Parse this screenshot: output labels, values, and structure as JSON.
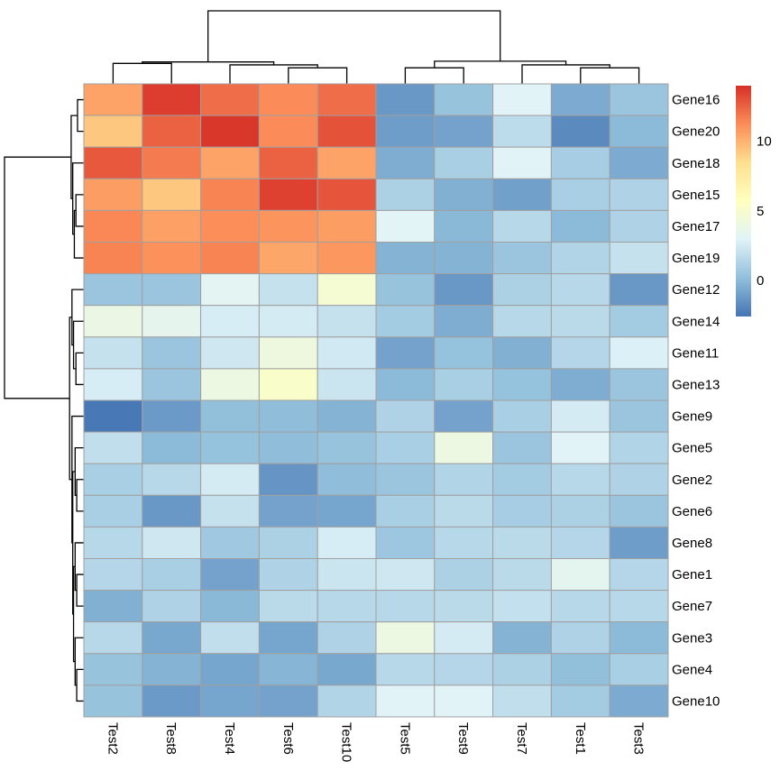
{
  "chart_data": {
    "type": "heatmap",
    "title": "",
    "clustered": true,
    "columns": [
      "Test2",
      "Test8",
      "Test4",
      "Test6",
      "Test10",
      "Test5",
      "Test9",
      "Test7",
      "Test1",
      "Test3"
    ],
    "rows": [
      "Gene16",
      "Gene20",
      "Gene18",
      "Gene15",
      "Gene17",
      "Gene19",
      "Gene12",
      "Gene14",
      "Gene11",
      "Gene13",
      "Gene9",
      "Gene5",
      "Gene2",
      "Gene6",
      "Gene8",
      "Gene1",
      "Gene7",
      "Gene3",
      "Gene4",
      "Gene10"
    ],
    "values": [
      [
        10.5,
        13.6,
        12.2,
        11.3,
        12.2,
        -1.3,
        0.4,
        3.0,
        -0.6,
        0.5
      ],
      [
        9.3,
        12.5,
        13.8,
        11.3,
        13.0,
        -1.1,
        -0.9,
        1.7,
        -1.8,
        0.0
      ],
      [
        12.8,
        11.8,
        10.5,
        12.5,
        10.5,
        -0.5,
        1.0,
        3.0,
        0.9,
        -0.6
      ],
      [
        10.7,
        9.3,
        11.5,
        13.5,
        12.9,
        1.1,
        -0.4,
        -1.0,
        1.0,
        1.2
      ],
      [
        11.4,
        10.6,
        11.2,
        11.0,
        10.7,
        3.1,
        -0.1,
        1.5,
        0.0,
        1.2
      ],
      [
        11.5,
        11.1,
        11.5,
        10.4,
        10.9,
        -0.3,
        -0.3,
        0.5,
        1.3,
        2.0
      ],
      [
        0.5,
        0.5,
        3.2,
        2.0,
        4.8,
        0.4,
        -1.3,
        1.1,
        1.5,
        -1.3
      ],
      [
        3.9,
        3.4,
        2.6,
        2.5,
        2.0,
        0.8,
        -0.5,
        1.5,
        1.6,
        0.8
      ],
      [
        2.0,
        0.5,
        2.3,
        4.2,
        2.4,
        -0.9,
        0.3,
        -0.4,
        1.4,
        2.8
      ],
      [
        2.6,
        0.5,
        4.0,
        5.2,
        2.2,
        0.0,
        1.0,
        0.3,
        -0.5,
        0.5
      ],
      [
        -2.5,
        -1.2,
        0.2,
        0.1,
        -0.3,
        1.2,
        -0.9,
        1.0,
        2.5,
        0.5
      ],
      [
        1.8,
        0.0,
        0.3,
        0.1,
        0.4,
        1.0,
        4.0,
        0.5,
        3.0,
        1.3
      ],
      [
        1.0,
        1.5,
        2.5,
        -1.4,
        0.1,
        0.5,
        1.3,
        0.8,
        1.5,
        1.2
      ],
      [
        1.0,
        -1.3,
        2.0,
        -0.9,
        -0.8,
        1.0,
        1.6,
        0.9,
        1.1,
        0.5
      ],
      [
        1.5,
        2.3,
        0.7,
        1.1,
        2.6,
        0.6,
        1.5,
        1.6,
        1.4,
        -1.1
      ],
      [
        1.4,
        1.0,
        -0.9,
        1.2,
        2.2,
        2.3,
        1.1,
        1.6,
        3.3,
        1.4
      ],
      [
        -0.4,
        1.2,
        -0.1,
        1.6,
        1.5,
        1.5,
        1.6,
        1.9,
        1.5,
        1.5
      ],
      [
        1.5,
        -0.7,
        1.8,
        -0.8,
        1.2,
        4.0,
        2.5,
        -0.3,
        1.2,
        0.0
      ],
      [
        0.4,
        -0.3,
        -0.8,
        -0.2,
        -0.7,
        1.5,
        1.4,
        1.1,
        0.2,
        1.0
      ],
      [
        0.4,
        -1.2,
        -0.8,
        -0.9,
        1.3,
        3.0,
        3.0,
        1.8,
        0.8,
        -0.6
      ]
    ],
    "color_scale": {
      "palette": [
        "#4575B4",
        "#91BFDB",
        "#E0F3F8",
        "#FFFFBF",
        "#FEE090",
        "#FC8D59",
        "#D73027"
      ],
      "min": -2.6,
      "max": 14.0
    },
    "legend": {
      "position": "top-right",
      "ticks": [
        0,
        5,
        10
      ]
    },
    "cell_border_color": "#A0A0A0",
    "col_dendrogram": {
      "merges": [
        {
          "left": "Test2",
          "right": "Test8",
          "height": 0.28
        },
        {
          "left": "Test6",
          "right": "Test10",
          "height": 0.22
        },
        {
          "left": "Test4",
          "right": "Test6+Test10",
          "height": 0.26
        },
        {
          "left": "Test2+Test8",
          "right": "Test4+Test6+Test10",
          "height": 0.3
        },
        {
          "left": "Test5",
          "right": "Test9",
          "height": 0.22
        },
        {
          "left": "Test1",
          "right": "Test3",
          "height": 0.22
        },
        {
          "left": "Test7",
          "right": "Test1+Test3",
          "height": 0.26
        },
        {
          "left": "Test5+Test9",
          "right": "Test7+Test1+Test3",
          "height": 0.31
        },
        {
          "left": "group1",
          "right": "group2",
          "height": 1.0
        }
      ]
    },
    "row_dendrogram": {
      "merges": [
        {
          "left": "Gene16",
          "right": "Gene20",
          "height": 0.08
        },
        {
          "left": "Gene15",
          "right": "Gene17",
          "height": 0.1
        },
        {
          "left": "Gene15+Gene17",
          "right": "Gene19",
          "height": 0.12
        },
        {
          "left": "Gene18",
          "right": "Gene15+Gene17+Gene19",
          "height": 0.14
        },
        {
          "left": "Gene16+Gene20",
          "right": "rest_red",
          "height": 0.16
        },
        {
          "left": "Gene11",
          "right": "Gene13",
          "height": 0.1
        },
        {
          "left": "Gene14",
          "right": "Gene11+Gene13",
          "height": 0.13
        },
        {
          "left": "Gene12",
          "right": "Gene14+Gene11+Gene13",
          "height": 0.15
        },
        {
          "left": "Gene2",
          "right": "Gene6",
          "height": 0.09
        },
        {
          "left": "Gene5",
          "right": "Gene2+Gene6",
          "height": 0.11
        },
        {
          "left": "Gene1",
          "right": "Gene7",
          "height": 0.09
        },
        {
          "left": "Gene8",
          "right": "Gene1+Gene7",
          "height": 0.11
        },
        {
          "left": "Gene4",
          "right": "Gene10",
          "height": 0.09
        },
        {
          "left": "Gene3",
          "right": "Gene4+Gene10",
          "height": 0.11
        },
        {
          "left": "Gene8+Gene1+Gene7",
          "right": "Gene3+Gene4+Gene10",
          "height": 0.13
        },
        {
          "left": "Gene5+Gene2+Gene6",
          "right": "Gene8..Gene10",
          "height": 0.14
        },
        {
          "left": "Gene9",
          "right": "Gene5..Gene10",
          "height": 0.15
        },
        {
          "left": "Gene12..Gene13",
          "right": "Gene9..Gene10",
          "height": 0.18
        },
        {
          "left": "red_cluster",
          "right": "blue_cluster",
          "height": 1.0
        }
      ]
    }
  }
}
